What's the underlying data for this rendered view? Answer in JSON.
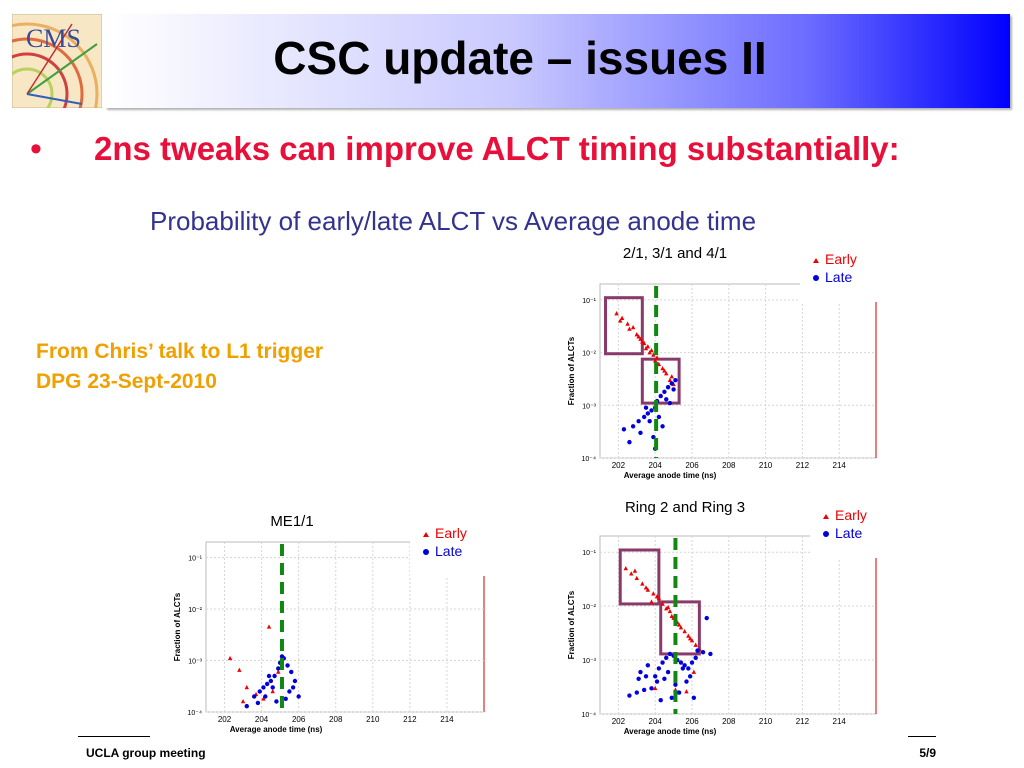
{
  "slide": {
    "title": "CSC update – issues II",
    "bullet_symbol": "•",
    "bullet_text": "2ns tweaks can improve ALCT timing substantially:",
    "subtitle": "Probability of early/late ALCT vs Average anode time",
    "note": "From Chris’ talk to L1 trigger DPG 23-Sept-2010",
    "logo_text": "CMS",
    "footer_left": "UCLA group meeting",
    "footer_right": "5/9"
  },
  "colors": {
    "title_band_end": "#0000ff",
    "bullet": "#e8103a",
    "subtitle": "#33338f",
    "note": "#f0a000",
    "early": "#ee0000",
    "late": "#0000dd",
    "dashed_line": "#118811",
    "box": "#8a3a6a"
  },
  "chart_data": [
    {
      "type": "scatter",
      "title": "2/1, 3/1 and 4/1",
      "xlabel": "Average anode time (ns)",
      "ylabel": "Fraction of ALCTs",
      "y_scale": "log",
      "xlim": [
        201,
        216
      ],
      "ylim": [
        0.0001,
        0.2
      ],
      "xticks": [
        "202",
        "204",
        "206",
        "208",
        "210",
        "212",
        "214"
      ],
      "yticks": [
        "10⁻¹",
        "10⁻²",
        "10⁻³",
        "10⁻⁴"
      ],
      "vline_x": 204.05,
      "legend_position": "top-right",
      "boxes": [
        {
          "x": [
            201.3,
            203.3
          ],
          "y": [
            0.0095,
            0.11
          ]
        },
        {
          "x": [
            203.3,
            205.3
          ],
          "y": [
            0.0011,
            0.0075
          ]
        }
      ],
      "series": [
        {
          "name": "Early",
          "marker": "triangle",
          "x": [
            201.9,
            202.2,
            202.5,
            202.8,
            203.0,
            203.2,
            203.4,
            203.5,
            203.7,
            203.9,
            204.0,
            204.2,
            204.4,
            204.6,
            204.8,
            205.0,
            202.1,
            202.6,
            203.1,
            203.6,
            204.1,
            204.5,
            204.9,
            203.3,
            203.8
          ],
          "y": [
            0.055,
            0.045,
            0.035,
            0.03,
            0.022,
            0.018,
            0.015,
            0.012,
            0.01,
            0.009,
            0.007,
            0.006,
            0.005,
            0.004,
            0.003,
            0.0025,
            0.04,
            0.028,
            0.02,
            0.013,
            0.008,
            0.0045,
            0.0035,
            0.016,
            0.011
          ]
        },
        {
          "name": "Late",
          "marker": "circle",
          "x": [
            202.3,
            202.8,
            203.1,
            203.4,
            203.6,
            203.8,
            204.0,
            204.1,
            204.3,
            204.5,
            204.7,
            204.9,
            205.1,
            203.2,
            203.9,
            204.4,
            204.8,
            203.5,
            204.2,
            204.6,
            202.6,
            203.7,
            204.0,
            205.0
          ],
          "y": [
            0.00035,
            0.0004,
            0.0005,
            0.0006,
            0.0007,
            0.0008,
            0.0009,
            0.0012,
            0.0015,
            0.0018,
            0.0022,
            0.0026,
            0.003,
            0.0003,
            0.00025,
            0.0004,
            0.0011,
            0.0009,
            0.0006,
            0.0013,
            0.0002,
            0.0005,
            0.00015,
            0.002
          ]
        }
      ]
    },
    {
      "type": "scatter",
      "title": "ME1/1",
      "xlabel": "Average anode time (ns)",
      "ylabel": "Fraction of ALCTs",
      "y_scale": "log",
      "xlim": [
        201,
        216
      ],
      "ylim": [
        0.0001,
        0.2
      ],
      "xticks": [
        "202",
        "204",
        "206",
        "208",
        "210",
        "212",
        "214"
      ],
      "yticks": [
        "10⁻¹",
        "10⁻²",
        "10⁻³",
        "10⁻⁴"
      ],
      "vline_x": 205.1,
      "legend_position": "top-right",
      "boxes": [],
      "series": [
        {
          "name": "Early",
          "marker": "triangle",
          "x": [
            202.3,
            202.8,
            203.2,
            203.7,
            204.1,
            204.4,
            204.9,
            203.0,
            204.6
          ],
          "y": [
            0.0011,
            0.00065,
            0.0003,
            0.00022,
            0.00018,
            0.0045,
            0.0006,
            0.00016,
            0.00025
          ]
        },
        {
          "name": "Late",
          "marker": "circle",
          "x": [
            203.2,
            203.6,
            203.9,
            204.1,
            204.3,
            204.5,
            204.7,
            204.9,
            205.0,
            205.2,
            205.4,
            205.6,
            205.8,
            204.2,
            204.6,
            205.1,
            205.5,
            203.8,
            204.8,
            205.3,
            206.0,
            204.4,
            205.7
          ],
          "y": [
            0.00013,
            0.0002,
            0.00025,
            0.0003,
            0.00035,
            0.0004,
            0.0005,
            0.0007,
            0.0009,
            0.0011,
            0.0008,
            0.0006,
            0.0004,
            0.0002,
            0.0003,
            0.0012,
            0.00025,
            0.00015,
            0.00016,
            0.00018,
            0.0002,
            0.0005,
            0.0003
          ]
        }
      ]
    },
    {
      "type": "scatter",
      "title": "Ring 2 and Ring 3",
      "xlabel": "Average anode time (ns)",
      "ylabel": "Fraction of ALCTs",
      "y_scale": "log",
      "xlim": [
        201,
        216
      ],
      "ylim": [
        0.0001,
        0.2
      ],
      "xticks": [
        "202",
        "204",
        "206",
        "208",
        "210",
        "212",
        "214"
      ],
      "yticks": [
        "10⁻¹",
        "10⁻²",
        "10⁻³",
        "10⁻⁴"
      ],
      "vline_x": 205.1,
      "legend_position": "top-right",
      "boxes": [
        {
          "x": [
            202.1,
            204.2
          ],
          "y": [
            0.011,
            0.11
          ]
        },
        {
          "x": [
            204.3,
            206.4
          ],
          "y": [
            0.0013,
            0.012
          ]
        }
      ],
      "series": [
        {
          "name": "Early",
          "marker": "triangle",
          "x": [
            202.4,
            202.7,
            203.0,
            203.3,
            203.6,
            203.9,
            204.2,
            204.4,
            204.6,
            204.8,
            205.0,
            205.2,
            205.4,
            205.6,
            205.8,
            206.0,
            206.2,
            206.4,
            202.9,
            203.5,
            204.1,
            204.7,
            205.3,
            205.9,
            204.0,
            205.1,
            205.7,
            206.1,
            203.8,
            204.9
          ],
          "y": [
            0.05,
            0.04,
            0.033,
            0.026,
            0.02,
            0.017,
            0.014,
            0.011,
            0.009,
            0.008,
            0.006,
            0.005,
            0.004,
            0.0034,
            0.0028,
            0.0023,
            0.0019,
            0.0016,
            0.045,
            0.022,
            0.015,
            0.0095,
            0.0045,
            0.0025,
            0.0003,
            0.00028,
            0.00026,
            0.0006,
            0.012,
            0.0065
          ]
        },
        {
          "name": "Late",
          "marker": "circle",
          "x": [
            202.6,
            203.0,
            203.4,
            203.8,
            204.0,
            204.2,
            204.4,
            204.6,
            204.8,
            205.0,
            205.2,
            205.4,
            205.6,
            205.8,
            206.0,
            206.2,
            206.6,
            207.0,
            203.2,
            203.6,
            204.1,
            204.5,
            204.9,
            205.3,
            205.7,
            206.3,
            206.8,
            205.1,
            204.3,
            203.5,
            204.7,
            205.5,
            205.9,
            206.1,
            203.1
          ],
          "y": [
            0.00022,
            0.00025,
            0.00028,
            0.0003,
            0.0005,
            0.0007,
            0.0009,
            0.0011,
            0.0013,
            0.0012,
            0.001,
            0.0009,
            0.0008,
            0.0007,
            0.0009,
            0.0011,
            0.0014,
            0.0013,
            0.0006,
            0.0008,
            0.0004,
            0.00045,
            0.0002,
            0.00025,
            0.0004,
            0.0015,
            0.006,
            0.00035,
            0.00018,
            0.0005,
            0.0006,
            0.0007,
            0.0005,
            0.0002,
            0.00045
          ]
        }
      ]
    }
  ]
}
